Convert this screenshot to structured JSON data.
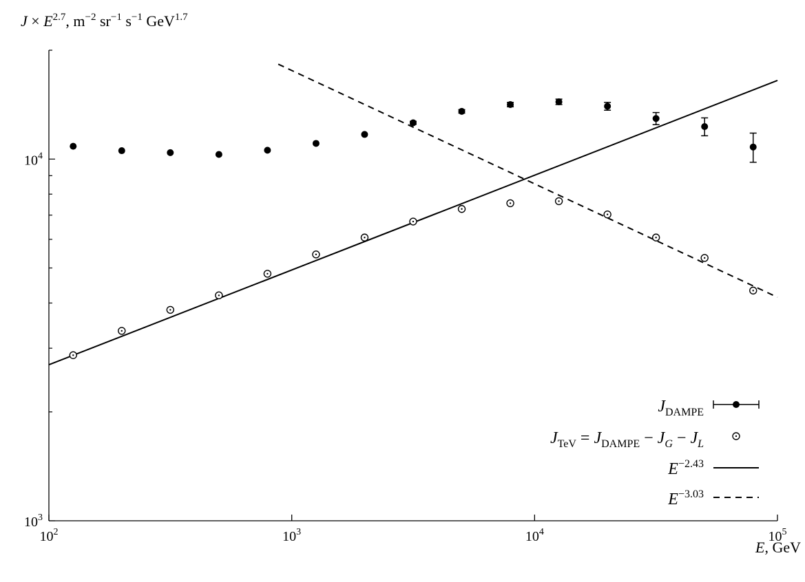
{
  "chart_data": {
    "type": "scatter",
    "title": "",
    "xscale": "log",
    "yscale": "log",
    "xlim": [
      100,
      100000
    ],
    "ylim": [
      1000,
      20000
    ],
    "grid": false,
    "legend_position": "bottom-right",
    "x_label": {
      "main": "E",
      "unit": ", GeV"
    },
    "y_label": {
      "J": "J",
      "times": " × ",
      "E": "E",
      "E_exp": "2.7",
      "units_1": ", m",
      "m_exp": "−2",
      "units_2": " sr",
      "sr_exp": "−1",
      "units_3": " s",
      "s_exp": "−1",
      "units_4": " GeV",
      "gev_exp": "1.7"
    },
    "x_ticks": [
      {
        "value": 100,
        "base": "10",
        "exp": "2"
      },
      {
        "value": 1000,
        "base": "10",
        "exp": "3"
      },
      {
        "value": 10000,
        "base": "10",
        "exp": "4"
      },
      {
        "value": 100000,
        "base": "10",
        "exp": "5"
      }
    ],
    "y_ticks": [
      {
        "value": 1000,
        "base": "10",
        "exp": "3"
      },
      {
        "value": 10000,
        "base": "10",
        "exp": "4"
      }
    ],
    "series": [
      {
        "key": "dampe",
        "marker": "filled-circle",
        "legend": {
          "sym": "J",
          "sub": "DAMPE"
        },
        "x": [
          125.9,
          199.5,
          316.2,
          501.2,
          794.3,
          1259,
          1995,
          3162,
          5012,
          7943,
          12589,
          19953,
          31623,
          50119,
          79433
        ],
        "y": [
          10850,
          10550,
          10420,
          10300,
          10580,
          11050,
          11700,
          12600,
          13550,
          14150,
          14400,
          14000,
          12950,
          12300,
          10800
        ],
        "yerr": [
          60,
          60,
          60,
          60,
          60,
          70,
          100,
          120,
          150,
          200,
          250,
          350,
          500,
          700,
          1000
        ]
      },
      {
        "key": "tev",
        "marker": "dotted-open-circle",
        "legend": {
          "lhs": "J",
          "lhs_sub": "TeV",
          "eq": " = ",
          "r1": "J",
          "r1_sub": "DAMPE",
          "minus1": " − ",
          "r2": "J",
          "r2_sub": "G",
          "minus2": " − ",
          "r3": "J",
          "r3_sub": "L"
        },
        "x": [
          125.9,
          199.5,
          316.2,
          501.2,
          794.3,
          1259,
          1995,
          3162,
          5012,
          7943,
          12589,
          19953,
          31623,
          50119,
          79433
        ],
        "y": [
          2870,
          3350,
          3830,
          4200,
          4820,
          5450,
          6070,
          6720,
          7280,
          7550,
          7650,
          7030,
          6070,
          5330,
          4330
        ]
      },
      {
        "key": "fit_243",
        "style": "solid",
        "legend": {
          "base": "E",
          "exp": "−2.43"
        },
        "x": [
          100,
          100000
        ],
        "y": [
          2700,
          16500
        ]
      },
      {
        "key": "fit_303",
        "style": "dashed",
        "legend": {
          "base": "E",
          "exp": "−3.03"
        },
        "x": [
          880,
          100000
        ],
        "y": [
          18300,
          4150
        ]
      }
    ]
  }
}
